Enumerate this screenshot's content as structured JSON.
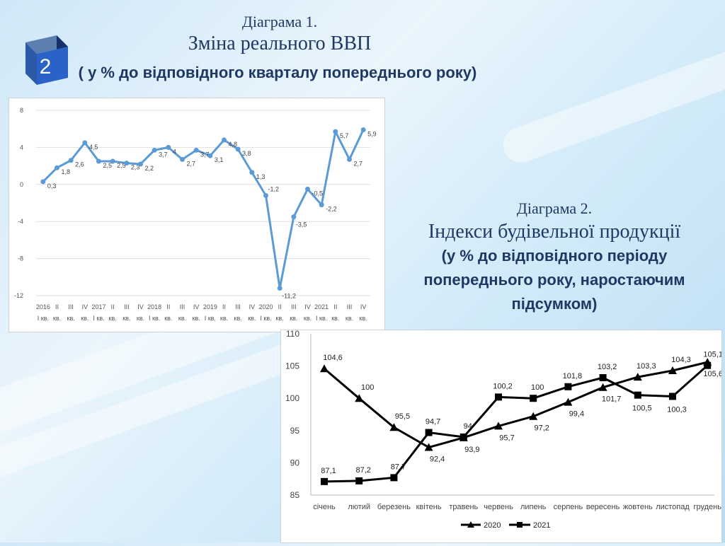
{
  "slide": {
    "badge_number": "2",
    "chart1_caption": "Діаграма 1.",
    "chart1_title": "Зміна реального ВВП",
    "chart1_subtitle": "( у % до відповідного кварталу попереднього року)",
    "chart2_caption": "Діаграма 2.",
    "chart2_title": "Індекси будівельної продукції",
    "chart2_subtitle_line1": "(у % до відповідного періоду",
    "chart2_subtitle_line2": "попереднього року, наростаючим",
    "chart2_subtitle_line3": "підсумком)",
    "accent_color": "#1f3864"
  },
  "chart_data": [
    {
      "type": "line",
      "title": "Зміна реального ВВП",
      "color": "#5b9bd5",
      "ylim": [
        -12,
        8
      ],
      "yticks": [
        "8",
        "4",
        "0",
        "-4",
        "-8",
        "-12"
      ],
      "grid": true,
      "x_tick_labels": [
        [
          "2016",
          "I кв."
        ],
        [
          "II",
          "кв."
        ],
        [
          "III",
          "кв."
        ],
        [
          "IV",
          "кв."
        ],
        [
          "2017",
          "I кв."
        ],
        [
          "II",
          "кв."
        ],
        [
          "III",
          "кв."
        ],
        [
          "IV",
          "кв."
        ],
        [
          "2018",
          "I кв."
        ],
        [
          "II",
          "кв."
        ],
        [
          "III",
          "кв."
        ],
        [
          "IV",
          "кв."
        ],
        [
          "2019",
          "I кв."
        ],
        [
          "II",
          "кв."
        ],
        [
          "III",
          "кв."
        ],
        [
          "IV",
          "кв."
        ],
        [
          "2020",
          "I кв."
        ],
        [
          "II",
          "кв."
        ],
        [
          "III",
          "кв."
        ],
        [
          "IV",
          "кв."
        ],
        [
          "2021",
          "I кв."
        ],
        [
          "II",
          "кв."
        ],
        [
          "III",
          "кв."
        ],
        [
          "IV",
          "кв."
        ]
      ],
      "values": [
        0.3,
        1.8,
        2.6,
        4.5,
        2.5,
        2.5,
        2.3,
        2.2,
        3.7,
        4.0,
        2.7,
        3.7,
        3.1,
        4.8,
        3.8,
        1.3,
        -1.2,
        -11.2,
        -3.5,
        -0.5,
        -2.2,
        5.7,
        2.7,
        5.9
      ],
      "data_labels": [
        "0,3",
        "1,8",
        "2,6",
        "4,5",
        "2,5",
        "2,5",
        "2,3",
        "2,2",
        "3,7",
        "4",
        "2,7",
        "3,7",
        "3,1",
        "4,8",
        "3,8",
        "1,3",
        "-1,2",
        "-11,2",
        "-3,5",
        "-0,5",
        "-2,2",
        "5,7",
        "2,7",
        "5,9"
      ]
    },
    {
      "type": "line",
      "title": "Індекси будівельної продукції",
      "categories": [
        "січень",
        "лютий",
        "березень",
        "квітень",
        "травень",
        "червень",
        "липень",
        "серпень",
        "вересень",
        "жовтень",
        "листопад",
        "грудень"
      ],
      "ylim": [
        85,
        110
      ],
      "yticks": [
        "110",
        "105",
        "100",
        "95",
        "90",
        "85"
      ],
      "grid": false,
      "legend": "bottom",
      "series": [
        {
          "name": "2020",
          "marker": "triangle",
          "values": [
            104.6,
            100,
            95.5,
            92.4,
            93.9,
            95.7,
            97.2,
            99.4,
            101.7,
            103.3,
            104.3,
            105.6
          ],
          "data_labels": [
            "104,6",
            "100",
            "95,5",
            "92,4",
            "93,9",
            "95,7",
            "97,2",
            "99,4",
            "101,7",
            "103,3",
            "104,3",
            "105,6"
          ]
        },
        {
          "name": "2021",
          "marker": "square",
          "values": [
            87.1,
            87.2,
            87.7,
            94.7,
            94,
            100.2,
            100,
            101.8,
            103.2,
            100.5,
            100.3,
            105.1
          ],
          "data_labels": [
            "87,1",
            "87,2",
            "87,7",
            "94,7",
            "94",
            "100,2",
            "100",
            "101,8",
            "103,2",
            "100,5",
            "100,3",
            "105,1"
          ]
        }
      ]
    }
  ]
}
